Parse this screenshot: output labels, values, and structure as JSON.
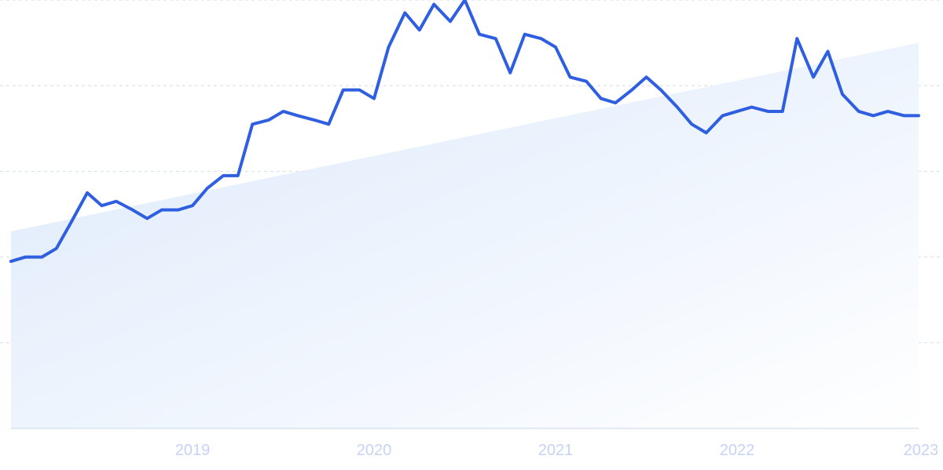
{
  "chart_data": {
    "type": "line",
    "title": "",
    "xlabel": "",
    "ylabel": "",
    "x_tick_labels": [
      "2019",
      "2020",
      "2021",
      "2022",
      "2023"
    ],
    "x_ticks": [
      2019,
      2020,
      2021,
      2022,
      2023
    ],
    "xlim": [
      2018.0,
      2023.0
    ],
    "ylim": [
      0,
      100
    ],
    "grid": true,
    "legend": "none",
    "colors": {
      "line": "#2f5fe0",
      "trend_fill_top": "#dce9fb",
      "trend_fill_bottom": "#ffffff",
      "grid": "#d7dee8",
      "tick_label": "#c7d3f5"
    },
    "trend": {
      "x": [
        2018.0,
        2023.0
      ],
      "y": [
        46,
        90
      ]
    },
    "series": [
      {
        "x": [
          2018.0,
          2018.08,
          2018.17,
          2018.25,
          2018.33,
          2018.42,
          2018.5,
          2018.58,
          2018.67,
          2018.75,
          2018.83,
          2018.92,
          2019.0,
          2019.08,
          2019.17,
          2019.25,
          2019.33,
          2019.42,
          2019.5,
          2019.58,
          2019.67,
          2019.75,
          2019.83,
          2019.92,
          2020.0,
          2020.08,
          2020.17,
          2020.25,
          2020.33,
          2020.42,
          2020.5,
          2020.58,
          2020.67,
          2020.75,
          2020.83,
          2020.92,
          2021.0,
          2021.08,
          2021.17,
          2021.25,
          2021.33,
          2021.42,
          2021.5,
          2021.58,
          2021.67,
          2021.75,
          2021.83,
          2021.92,
          2022.0,
          2022.08,
          2022.17,
          2022.25,
          2022.33,
          2022.42,
          2022.5,
          2022.58,
          2022.67,
          2022.75,
          2022.83,
          2022.92,
          2023.0
        ],
        "y": [
          39,
          40,
          40,
          42,
          48,
          55,
          52,
          53,
          51,
          49,
          51,
          51,
          52,
          56,
          59,
          59,
          71,
          72,
          74,
          73,
          72,
          71,
          79,
          79,
          77,
          89,
          97,
          93,
          99,
          95,
          100,
          92,
          91,
          83,
          92,
          91,
          89,
          82,
          81,
          77,
          76,
          79,
          82,
          79,
          75,
          71,
          69,
          73,
          74,
          75,
          74,
          74,
          91,
          82,
          88,
          78,
          74,
          73,
          74,
          73,
          73
        ]
      }
    ]
  }
}
